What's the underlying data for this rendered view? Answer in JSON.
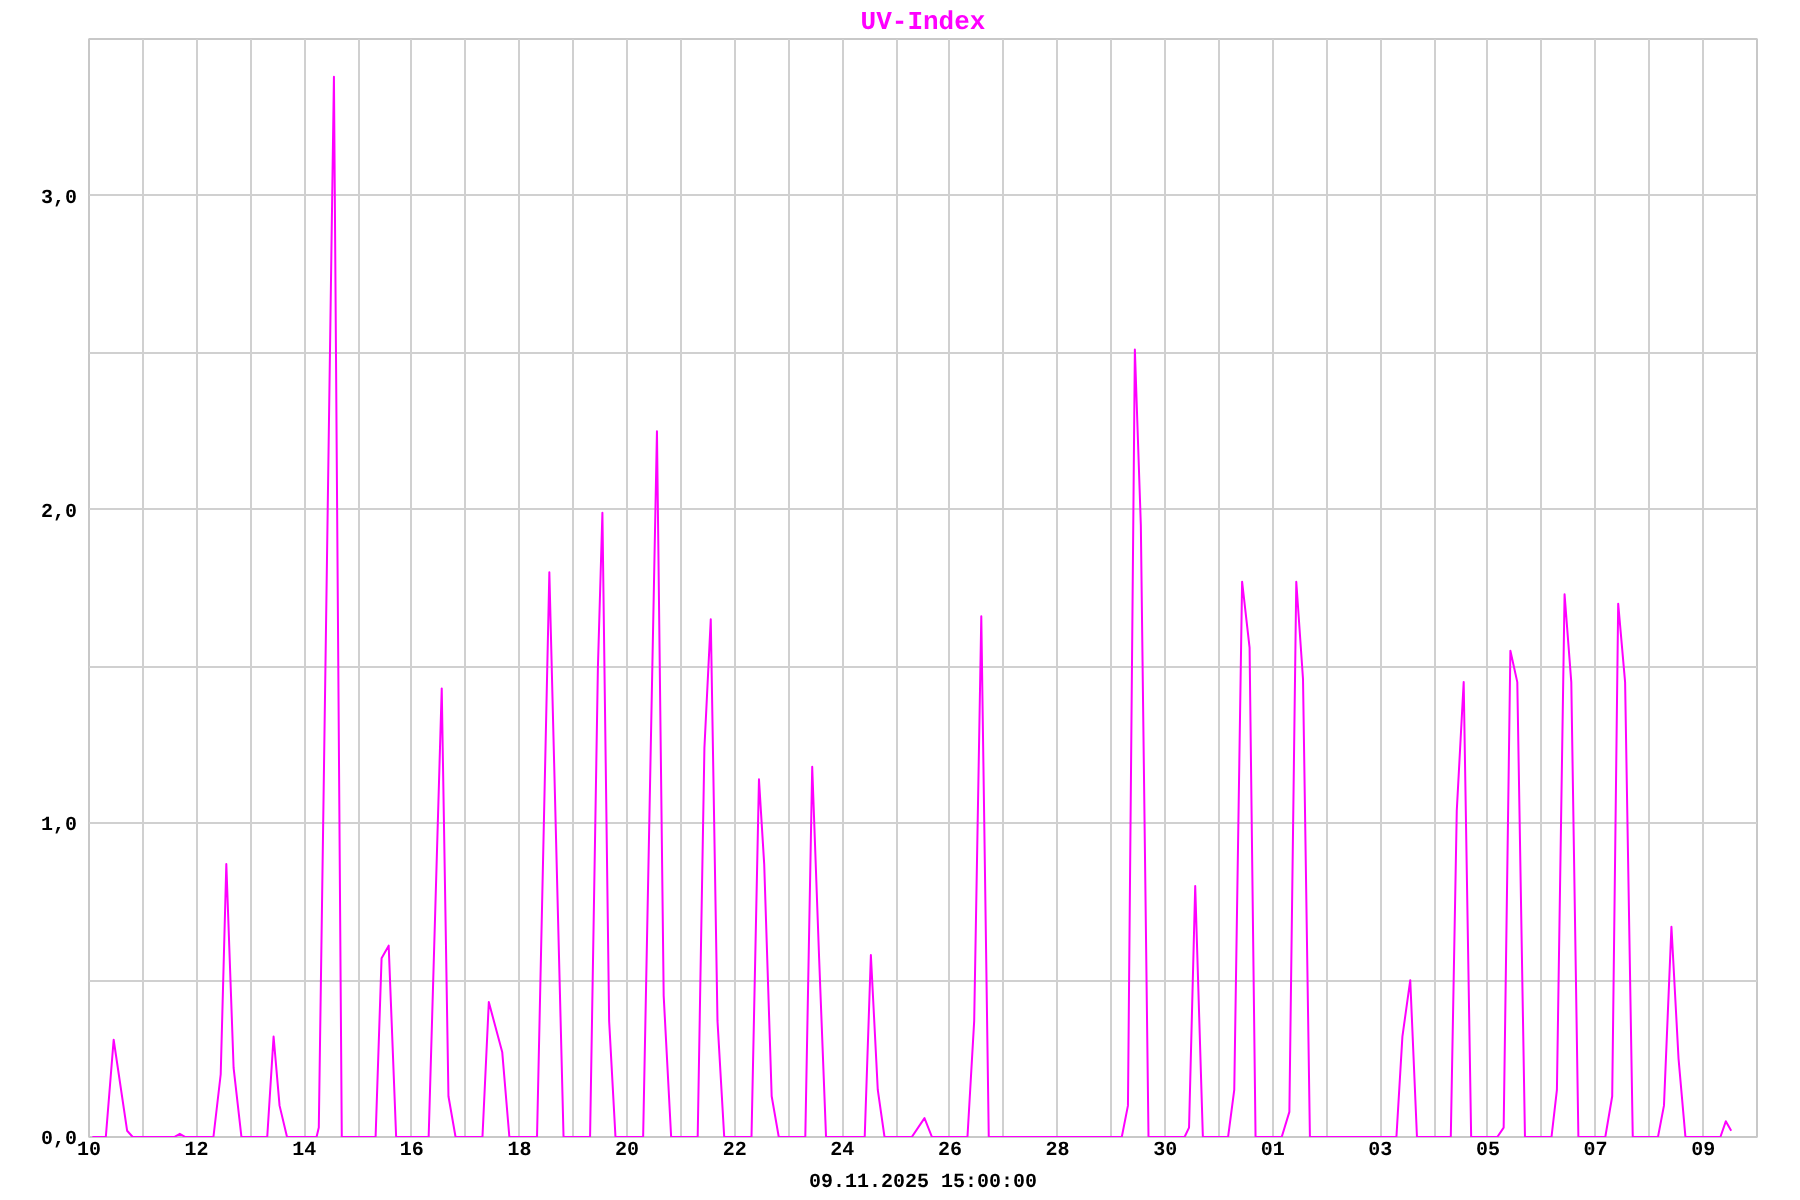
{
  "chart_data": {
    "type": "line",
    "title": "UV-Index",
    "xlabel": "09.11.2025 15:00:00",
    "color": "#ff00ff",
    "grid": true,
    "xlim": [
      "2025-10-10",
      "2025-11-10"
    ],
    "ylim": [
      0,
      3.5
    ],
    "xticks": [
      {
        "value": "2025-10-10",
        "label": "10"
      },
      {
        "value": "2025-10-11",
        "label": null
      },
      {
        "value": "2025-10-12",
        "label": "12"
      },
      {
        "value": "2025-10-13",
        "label": null
      },
      {
        "value": "2025-10-14",
        "label": "14"
      },
      {
        "value": "2025-10-15",
        "label": null
      },
      {
        "value": "2025-10-16",
        "label": "16"
      },
      {
        "value": "2025-10-17",
        "label": null
      },
      {
        "value": "2025-10-18",
        "label": "18"
      },
      {
        "value": "2025-10-19",
        "label": null
      },
      {
        "value": "2025-10-20",
        "label": "20"
      },
      {
        "value": "2025-10-21",
        "label": null
      },
      {
        "value": "2025-10-22",
        "label": "22"
      },
      {
        "value": "2025-10-23",
        "label": null
      },
      {
        "value": "2025-10-24",
        "label": "24"
      },
      {
        "value": "2025-10-25",
        "label": null
      },
      {
        "value": "2025-10-26",
        "label": "26"
      },
      {
        "value": "2025-10-27",
        "label": null
      },
      {
        "value": "2025-10-28",
        "label": "28"
      },
      {
        "value": "2025-10-29",
        "label": null
      },
      {
        "value": "2025-10-30",
        "label": "30"
      },
      {
        "value": "2025-10-31",
        "label": null
      },
      {
        "value": "2025-11-01",
        "label": "01"
      },
      {
        "value": "2025-11-02",
        "label": null
      },
      {
        "value": "2025-11-03",
        "label": "03"
      },
      {
        "value": "2025-11-04",
        "label": null
      },
      {
        "value": "2025-11-05",
        "label": "05"
      },
      {
        "value": "2025-11-06",
        "label": null
      },
      {
        "value": "2025-11-07",
        "label": "07"
      },
      {
        "value": "2025-11-08",
        "label": null
      },
      {
        "value": "2025-11-09",
        "label": "09"
      }
    ],
    "yticks": [
      {
        "value": 0,
        "label": "0,0"
      },
      {
        "value": 0.5,
        "label": null
      },
      {
        "value": 1,
        "label": "1,0"
      },
      {
        "value": 1.5,
        "label": null
      },
      {
        "value": 2,
        "label": "2,0"
      },
      {
        "value": 2.5,
        "label": null
      },
      {
        "value": 3,
        "label": "3,0"
      }
    ],
    "x": [
      "2025-10-10T01:30",
      "2025-10-10T07:30",
      "2025-10-10T11:00",
      "2025-10-10T17:00",
      "2025-10-10T19:30",
      "2025-10-11T14:00",
      "2025-10-11T16:30",
      "2025-10-11T19:00",
      "2025-10-12T07:30",
      "2025-10-12T10:45",
      "2025-10-12T13:15",
      "2025-10-12T16:30",
      "2025-10-12T20:00",
      "2025-10-13T07:30",
      "2025-10-13T10:20",
      "2025-10-13T13:00",
      "2025-10-13T16:20",
      "2025-10-14T05:30",
      "2025-10-14T06:30",
      "2025-10-14T13:15",
      "2025-10-14T16:45",
      "2025-10-15T07:50",
      "2025-10-15T10:30",
      "2025-10-15T13:40",
      "2025-10-15T17:00",
      "2025-10-16T07:30",
      "2025-10-16T13:20",
      "2025-10-16T16:20",
      "2025-10-16T19:30",
      "2025-10-17T07:30",
      "2025-10-17T10:20",
      "2025-10-17T16:20",
      "2025-10-17T19:30",
      "2025-10-18T07:50",
      "2025-10-18T13:20",
      "2025-10-18T19:40",
      "2025-10-19T07:30",
      "2025-10-19T11:00",
      "2025-10-19T13:00",
      "2025-10-19T16:00",
      "2025-10-19T18:50",
      "2025-10-20T07:10",
      "2025-10-20T13:20",
      "2025-10-20T16:20",
      "2025-10-20T19:40",
      "2025-10-21T07:30",
      "2025-10-21T10:30",
      "2025-10-21T13:20",
      "2025-10-21T16:20",
      "2025-10-21T19:20",
      "2025-10-22T07:30",
      "2025-10-22T10:50",
      "2025-10-22T13:10",
      "2025-10-22T16:30",
      "2025-10-22T19:40",
      "2025-10-23T07:30",
      "2025-10-23T10:35",
      "2025-10-23T13:40",
      "2025-10-23T16:45",
      "2025-10-24T10:00",
      "2025-10-24T12:45",
      "2025-10-24T15:50",
      "2025-10-24T18:50",
      "2025-10-25T07:00",
      "2025-10-25T12:40",
      "2025-10-25T16:00",
      "2025-10-26T07:50",
      "2025-10-26T10:50",
      "2025-10-26T14:00",
      "2025-10-26T17:20",
      "2025-10-29T04:40",
      "2025-10-29T07:25",
      "2025-10-29T10:30",
      "2025-10-29T13:10",
      "2025-10-29T16:35",
      "2025-10-30T08:40",
      "2025-10-30T10:40",
      "2025-10-30T13:25",
      "2025-10-30T16:50",
      "2025-10-31T04:05",
      "2025-10-31T06:50",
      "2025-10-31T10:20",
      "2025-10-31T13:40",
      "2025-10-31T16:20",
      "2025-11-01T04:00",
      "2025-11-01T07:25",
      "2025-11-01T10:30",
      "2025-11-01T13:30",
      "2025-11-01T16:35",
      "2025-11-03T07:10",
      "2025-11-03T09:50",
      "2025-11-03T13:20",
      "2025-11-03T16:20",
      "2025-11-04T07:25",
      "2025-11-04T10:05",
      "2025-11-04T13:10",
      "2025-11-04T16:30",
      "2025-11-05T04:10",
      "2025-11-05T07:00",
      "2025-11-05T10:00",
      "2025-11-05T13:05",
      "2025-11-05T16:30",
      "2025-11-06T04:20",
      "2025-11-06T06:45",
      "2025-11-06T10:10",
      "2025-11-06T13:10",
      "2025-11-06T16:20",
      "2025-11-07T04:20",
      "2025-11-07T07:25",
      "2025-11-07T10:05",
      "2025-11-07T13:10",
      "2025-11-07T16:35",
      "2025-11-08T03:50",
      "2025-11-08T06:30",
      "2025-11-08T09:50",
      "2025-11-08T13:00",
      "2025-11-08T16:05",
      "2025-11-09T07:40",
      "2025-11-09T10:05",
      "2025-11-09T12:30"
    ],
    "values": [
      0,
      0,
      0.31,
      0.02,
      0,
      0,
      0.01,
      0,
      0,
      0.2,
      0.87,
      0.22,
      0,
      0,
      0.32,
      0.1,
      0,
      0,
      0.03,
      3.38,
      0,
      0,
      0.57,
      0.61,
      0,
      0,
      1.43,
      0.13,
      0,
      0,
      0.43,
      0.27,
      0,
      0,
      1.8,
      0,
      0,
      1.5,
      1.99,
      0.37,
      0,
      0,
      2.25,
      0.45,
      0,
      0,
      1.24,
      1.65,
      0.37,
      0,
      0,
      1.14,
      0.87,
      0.13,
      0,
      0,
      1.18,
      0.57,
      0,
      0,
      0.58,
      0.15,
      0,
      0,
      0.06,
      0,
      0,
      0.37,
      1.66,
      0,
      0,
      0.1,
      2.51,
      1.95,
      0,
      0,
      0.03,
      0.8,
      0,
      0,
      0.15,
      1.77,
      1.56,
      0,
      0,
      0.08,
      1.77,
      1.46,
      0,
      0,
      0.32,
      0.5,
      0,
      0,
      1.04,
      1.45,
      0,
      0,
      0.03,
      1.55,
      1.45,
      0,
      0,
      0.15,
      1.73,
      1.45,
      0,
      0,
      0.13,
      1.7,
      1.45,
      0,
      0,
      0.1,
      0.67,
      0.25,
      0,
      0,
      0.05,
      0.02
    ]
  }
}
